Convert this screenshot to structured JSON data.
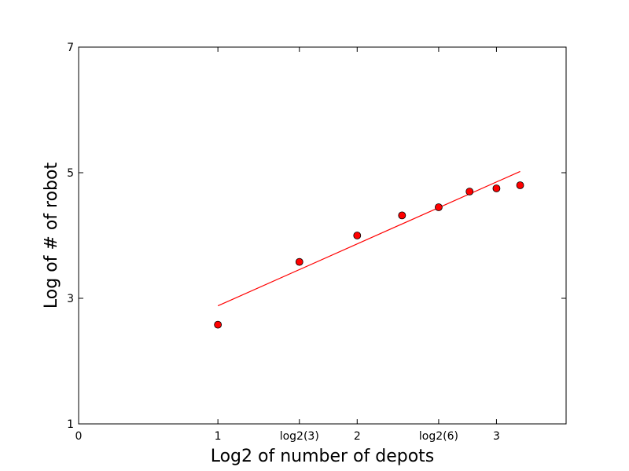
{
  "chart_data": {
    "type": "scatter",
    "xlabel": "Log2 of number of depots",
    "ylabel": "Log of # of robot",
    "xlim": [
      0,
      3.5
    ],
    "ylim": [
      1,
      7
    ],
    "grid": false,
    "x_ticks": [
      {
        "value": 0,
        "label": "0"
      },
      {
        "value": 1,
        "label": "1"
      },
      {
        "value": 1.585,
        "label": "log2(3)"
      },
      {
        "value": 2,
        "label": "2"
      },
      {
        "value": 2.585,
        "label": "log2(6)"
      },
      {
        "value": 3,
        "label": "3"
      }
    ],
    "y_ticks": [
      {
        "value": 1,
        "label": "1"
      },
      {
        "value": 3,
        "label": "3"
      },
      {
        "value": 5,
        "label": "5"
      },
      {
        "value": 7,
        "label": "7"
      }
    ],
    "series": [
      {
        "kind": "points",
        "color": "#ff0000",
        "points": [
          {
            "x": 1.0,
            "y": 2.58
          },
          {
            "x": 1.585,
            "y": 3.58
          },
          {
            "x": 2.0,
            "y": 4.0
          },
          {
            "x": 2.322,
            "y": 4.32
          },
          {
            "x": 2.585,
            "y": 4.45
          },
          {
            "x": 2.807,
            "y": 4.7
          },
          {
            "x": 3.0,
            "y": 4.75
          },
          {
            "x": 3.17,
            "y": 4.8
          }
        ]
      },
      {
        "kind": "line",
        "color": "#ff0000",
        "points": [
          {
            "x": 1.0,
            "y": 2.88
          },
          {
            "x": 3.17,
            "y": 5.02
          }
        ]
      }
    ]
  }
}
